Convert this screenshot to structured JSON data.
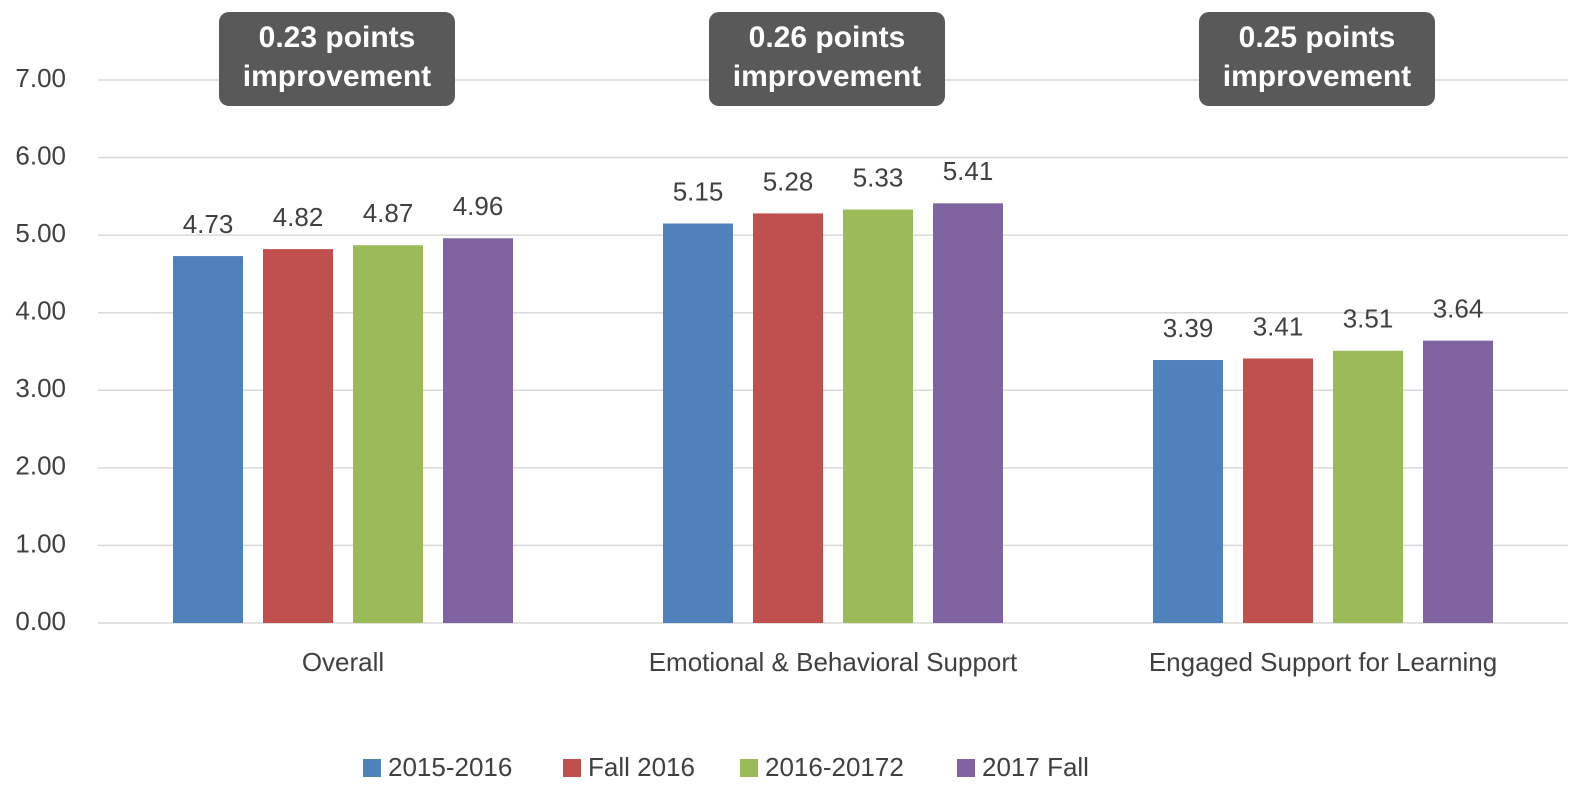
{
  "chart_data": {
    "type": "bar",
    "categories": [
      "Overall",
      "Emotional & Behavioral Support",
      "Engaged Support for Learning"
    ],
    "series": [
      {
        "name": "2015-2016",
        "color": "#4f81bd",
        "values": [
          4.73,
          5.15,
          3.39
        ]
      },
      {
        "name": "Fall 2016",
        "color": "#c0504d",
        "values": [
          4.82,
          5.28,
          3.41
        ]
      },
      {
        "name": "2016-20172",
        "color": "#9bbb59",
        "values": [
          4.87,
          5.33,
          3.51
        ]
      },
      {
        "name": "2017 Fall",
        "color": "#8064a2",
        "values": [
          4.96,
          5.41,
          3.64
        ]
      }
    ],
    "ylim": [
      0,
      7
    ],
    "yticks": [
      {
        "value": 0,
        "label": "0.00"
      },
      {
        "value": 1,
        "label": "1.00"
      },
      {
        "value": 2,
        "label": "2.00"
      },
      {
        "value": 3,
        "label": "3.00"
      },
      {
        "value": 4,
        "label": "4.00"
      },
      {
        "value": 5,
        "label": "5.00"
      },
      {
        "value": 6,
        "label": "6.00"
      },
      {
        "value": 7,
        "label": "7.00"
      }
    ],
    "grid": true,
    "legend": "bottom",
    "annotations": [
      [
        "0.23 points",
        "improvement"
      ],
      [
        "0.26 points",
        "improvement"
      ],
      [
        "0.25 points",
        "improvement"
      ]
    ]
  }
}
